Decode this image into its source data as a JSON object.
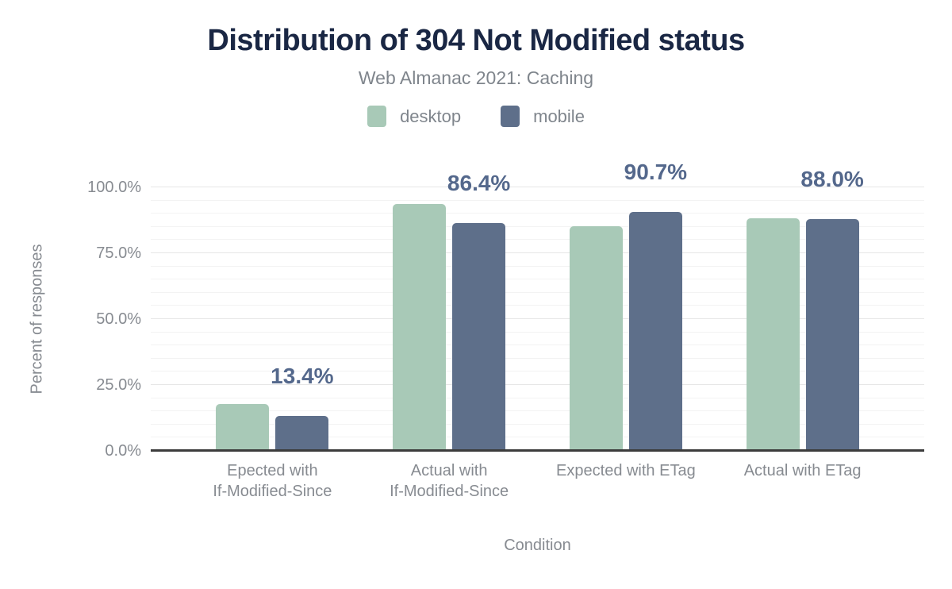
{
  "chart_data": {
    "type": "bar",
    "title": "Distribution of 304 Not Modified status",
    "subtitle": "Web Almanac 2021: Caching",
    "xlabel": "Condition",
    "ylabel": "Percent of responses",
    "categories": [
      "Epected with\nIf-Modified-Since",
      "Actual with\nIf-Modified-Since",
      "Expected with ETag",
      "Actual with ETag"
    ],
    "series": [
      {
        "name": "desktop",
        "color": "#a8c9b7",
        "values": [
          17.7,
          93.7,
          85.3,
          88.3
        ]
      },
      {
        "name": "mobile",
        "color": "#5e6f8a",
        "values": [
          13.4,
          86.4,
          90.7,
          88.0
        ]
      }
    ],
    "annotations": {
      "series": "mobile",
      "labels": [
        "13.4%",
        "86.4%",
        "90.7%",
        "88.0%"
      ]
    },
    "yticks": [
      {
        "pct": 0,
        "label": "0.0%"
      },
      {
        "pct": 25,
        "label": "25.0%"
      },
      {
        "pct": 50,
        "label": "50.0%"
      },
      {
        "pct": 75,
        "label": "75.0%"
      },
      {
        "pct": 100,
        "label": "100.0%"
      }
    ],
    "ylim": [
      0,
      100
    ],
    "minor_grid_step": 5,
    "major_grid_step": 25,
    "grid": true,
    "legend_position": "top"
  },
  "colors": {
    "title": "#1a2744",
    "subtitle_text": "#7f858c",
    "axis_text": "#878b91",
    "annotation_text": "#54688c",
    "minor_grid": "#f3f3f3",
    "major_grid": "#e6e6e6",
    "axis_line": "#3c3c3c",
    "background": "#ffffff"
  }
}
